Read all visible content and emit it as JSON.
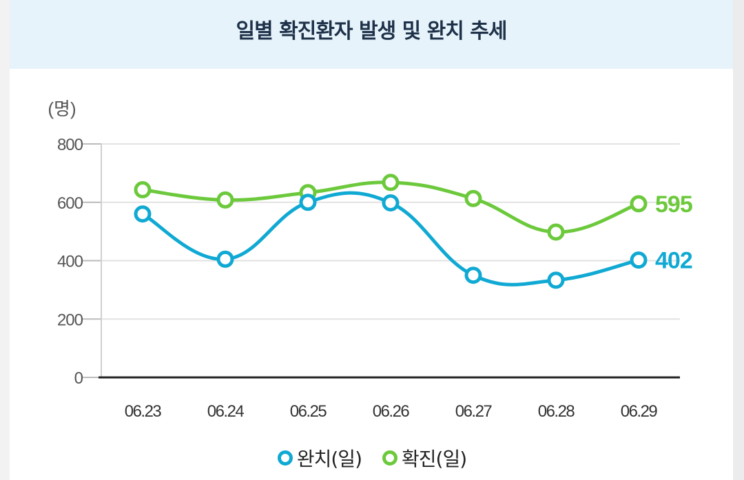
{
  "title": "일별 확진환자 발생 및 완치 추세",
  "colors": {
    "recovered": "#10a9d3",
    "confirmed": "#6cc93c",
    "axis": "#222222",
    "grid": "#e2e2e2",
    "tick_text": "#555555"
  },
  "chart_data": {
    "type": "line",
    "title": "일별 확진환자 발생 및 완치 추세",
    "ylabel": "(명)",
    "xlabel": "",
    "ylim": [
      0,
      800
    ],
    "yticks": [
      0,
      200,
      400,
      600,
      800
    ],
    "grid": true,
    "legend_position": "bottom",
    "categories": [
      "06.23",
      "06.24",
      "06.25",
      "06.26",
      "06.27",
      "06.28",
      "06.29"
    ],
    "series": [
      {
        "name": "완치(일)",
        "key": "recovered",
        "values": [
          560,
          405,
          600,
          598,
          350,
          333,
          402
        ],
        "end_label": "402"
      },
      {
        "name": "확진(일)",
        "key": "confirmed",
        "values": [
          643,
          608,
          633,
          668,
          613,
          498,
          595
        ],
        "end_label": "595"
      }
    ]
  }
}
